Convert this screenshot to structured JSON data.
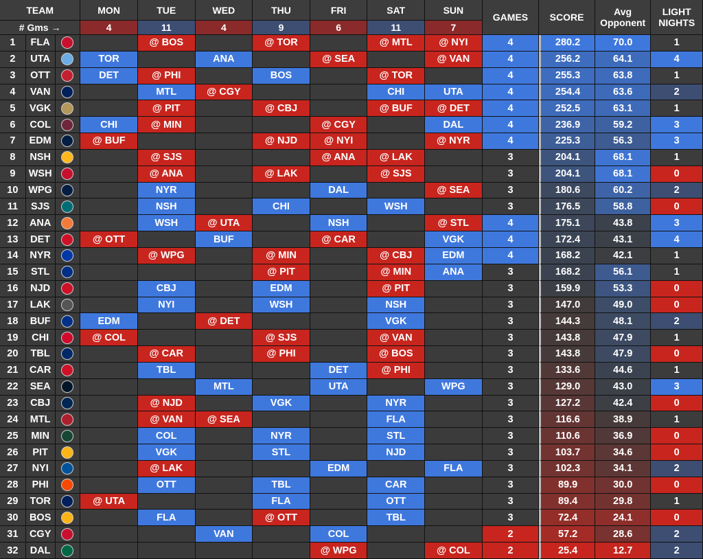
{
  "headers": {
    "team": "TEAM",
    "mon": "MON",
    "tue": "TUE",
    "wed": "WED",
    "thu": "THU",
    "fri": "FRI",
    "sat": "SAT",
    "sun": "SUN",
    "games": "GAMES",
    "score": "SCORE",
    "avg_line1": "Avg",
    "avg_line2": "Opponent",
    "light_line1": "LIGHT",
    "light_line2": "NIGHTS",
    "gms_label": "# Gms →"
  },
  "games_per_day": {
    "mon": "4",
    "tue": "11",
    "wed": "4",
    "thu": "9",
    "fri": "6",
    "sat": "11",
    "sun": "7"
  },
  "colors": {
    "home": "#3f78dd",
    "away": "#c8251e",
    "dark": "#3b3b3b"
  },
  "rows": [
    {
      "rank": "1",
      "team": "FLA",
      "logo": "#c8102e",
      "mon": "",
      "tue": "@ BOS",
      "wed": "",
      "thu": "@ TOR",
      "fri": "",
      "sat": "@ MTL",
      "sun": "@ NYI",
      "games": "4",
      "score": "280.2",
      "avg": "70.0",
      "light": "1"
    },
    {
      "rank": "2",
      "team": "UTA",
      "logo": "#6cace4",
      "mon": "TOR",
      "tue": "",
      "wed": "ANA",
      "thu": "",
      "fri": "@ SEA",
      "sat": "",
      "sun": "@ VAN",
      "games": "4",
      "score": "256.2",
      "avg": "64.1",
      "light": "4"
    },
    {
      "rank": "3",
      "team": "OTT",
      "logo": "#c52032",
      "mon": "DET",
      "tue": "@ PHI",
      "wed": "",
      "thu": "BOS",
      "fri": "",
      "sat": "@ TOR",
      "sun": "",
      "games": "4",
      "score": "255.3",
      "avg": "63.8",
      "light": "1"
    },
    {
      "rank": "4",
      "team": "VAN",
      "logo": "#00205b",
      "mon": "",
      "tue": "MTL",
      "wed": "@ CGY",
      "thu": "",
      "fri": "",
      "sat": "CHI",
      "sun": "UTA",
      "games": "4",
      "score": "254.4",
      "avg": "63.6",
      "light": "2"
    },
    {
      "rank": "5",
      "team": "VGK",
      "logo": "#b4975a",
      "mon": "",
      "tue": "@ PIT",
      "wed": "",
      "thu": "@ CBJ",
      "fri": "",
      "sat": "@ BUF",
      "sun": "@ DET",
      "games": "4",
      "score": "252.5",
      "avg": "63.1",
      "light": "1"
    },
    {
      "rank": "6",
      "team": "COL",
      "logo": "#6f263d",
      "mon": "CHI",
      "tue": "@ MIN",
      "wed": "",
      "thu": "",
      "fri": "@ CGY",
      "sat": "",
      "sun": "DAL",
      "games": "4",
      "score": "236.9",
      "avg": "59.2",
      "light": "3"
    },
    {
      "rank": "7",
      "team": "EDM",
      "logo": "#041e42",
      "mon": "@ BUF",
      "tue": "",
      "wed": "",
      "thu": "@ NJD",
      "fri": "@ NYI",
      "sat": "",
      "sun": "@ NYR",
      "games": "4",
      "score": "225.3",
      "avg": "56.3",
      "light": "3"
    },
    {
      "rank": "8",
      "team": "NSH",
      "logo": "#ffb81c",
      "mon": "",
      "tue": "@ SJS",
      "wed": "",
      "thu": "",
      "fri": "@ ANA",
      "sat": "@ LAK",
      "sun": "",
      "games": "3",
      "score": "204.1",
      "avg": "68.1",
      "light": "1"
    },
    {
      "rank": "9",
      "team": "WSH",
      "logo": "#c8102e",
      "mon": "",
      "tue": "@ ANA",
      "wed": "",
      "thu": "@ LAK",
      "fri": "",
      "sat": "@ SJS",
      "sun": "",
      "games": "3",
      "score": "204.1",
      "avg": "68.1",
      "light": "0"
    },
    {
      "rank": "10",
      "team": "WPG",
      "logo": "#041e42",
      "mon": "",
      "tue": "NYR",
      "wed": "",
      "thu": "",
      "fri": "DAL",
      "sat": "",
      "sun": "@ SEA",
      "games": "3",
      "score": "180.6",
      "avg": "60.2",
      "light": "2"
    },
    {
      "rank": "11",
      "team": "SJS",
      "logo": "#006d75",
      "mon": "",
      "tue": "NSH",
      "wed": "",
      "thu": "CHI",
      "fri": "",
      "sat": "WSH",
      "sun": "",
      "games": "3",
      "score": "176.5",
      "avg": "58.8",
      "light": "0"
    },
    {
      "rank": "12",
      "team": "ANA",
      "logo": "#f47a38",
      "mon": "",
      "tue": "WSH",
      "wed": "@ UTA",
      "thu": "",
      "fri": "NSH",
      "sat": "",
      "sun": "@ STL",
      "games": "4",
      "score": "175.1",
      "avg": "43.8",
      "light": "3"
    },
    {
      "rank": "13",
      "team": "DET",
      "logo": "#ce1126",
      "mon": "@ OTT",
      "tue": "",
      "wed": "BUF",
      "thu": "",
      "fri": "@ CAR",
      "sat": "",
      "sun": "VGK",
      "games": "4",
      "score": "172.4",
      "avg": "43.1",
      "light": "4"
    },
    {
      "rank": "14",
      "team": "NYR",
      "logo": "#0038a8",
      "mon": "",
      "tue": "@ WPG",
      "wed": "",
      "thu": "@ MIN",
      "fri": "",
      "sat": "@ CBJ",
      "sun": "EDM",
      "games": "4",
      "score": "168.2",
      "avg": "42.1",
      "light": "1"
    },
    {
      "rank": "15",
      "team": "STL",
      "logo": "#002f87",
      "mon": "",
      "tue": "",
      "wed": "",
      "thu": "@ PIT",
      "fri": "",
      "sat": "@ MIN",
      "sun": "ANA",
      "games": "3",
      "score": "168.2",
      "avg": "56.1",
      "light": "1"
    },
    {
      "rank": "16",
      "team": "NJD",
      "logo": "#ce1126",
      "mon": "",
      "tue": "CBJ",
      "wed": "",
      "thu": "EDM",
      "fri": "",
      "sat": "@ PIT",
      "sun": "",
      "games": "3",
      "score": "159.9",
      "avg": "53.3",
      "light": "0"
    },
    {
      "rank": "17",
      "team": "LAK",
      "logo": "#555555",
      "mon": "",
      "tue": "NYI",
      "wed": "",
      "thu": "WSH",
      "fri": "",
      "sat": "NSH",
      "sun": "",
      "games": "3",
      "score": "147.0",
      "avg": "49.0",
      "light": "0"
    },
    {
      "rank": "18",
      "team": "BUF",
      "logo": "#003087",
      "mon": "EDM",
      "tue": "",
      "wed": "@ DET",
      "thu": "",
      "fri": "",
      "sat": "VGK",
      "sun": "",
      "games": "3",
      "score": "144.3",
      "avg": "48.1",
      "light": "2"
    },
    {
      "rank": "19",
      "team": "CHI",
      "logo": "#cf0a2c",
      "mon": "@ COL",
      "tue": "",
      "wed": "",
      "thu": "@ SJS",
      "fri": "",
      "sat": "@ VAN",
      "sun": "",
      "games": "3",
      "score": "143.8",
      "avg": "47.9",
      "light": "1"
    },
    {
      "rank": "20",
      "team": "TBL",
      "logo": "#002868",
      "mon": "",
      "tue": "@ CAR",
      "wed": "",
      "thu": "@ PHI",
      "fri": "",
      "sat": "@ BOS",
      "sun": "",
      "games": "3",
      "score": "143.8",
      "avg": "47.9",
      "light": "0"
    },
    {
      "rank": "21",
      "team": "CAR",
      "logo": "#ce1126",
      "mon": "",
      "tue": "TBL",
      "wed": "",
      "thu": "",
      "fri": "DET",
      "sat": "@ PHI",
      "sun": "",
      "games": "3",
      "score": "133.6",
      "avg": "44.6",
      "light": "1"
    },
    {
      "rank": "22",
      "team": "SEA",
      "logo": "#001628",
      "mon": "",
      "tue": "",
      "wed": "MTL",
      "thu": "",
      "fri": "UTA",
      "sat": "",
      "sun": "WPG",
      "games": "3",
      "score": "129.0",
      "avg": "43.0",
      "light": "3"
    },
    {
      "rank": "23",
      "team": "CBJ",
      "logo": "#002654",
      "mon": "",
      "tue": "@ NJD",
      "wed": "",
      "thu": "VGK",
      "fri": "",
      "sat": "NYR",
      "sun": "",
      "games": "3",
      "score": "127.2",
      "avg": "42.4",
      "light": "0"
    },
    {
      "rank": "24",
      "team": "MTL",
      "logo": "#af1e2d",
      "mon": "",
      "tue": "@ VAN",
      "wed": "@ SEA",
      "thu": "",
      "fri": "",
      "sat": "FLA",
      "sun": "",
      "games": "3",
      "score": "116.6",
      "avg": "38.9",
      "light": "1"
    },
    {
      "rank": "25",
      "team": "MIN",
      "logo": "#154734",
      "mon": "",
      "tue": "COL",
      "wed": "",
      "thu": "NYR",
      "fri": "",
      "sat": "STL",
      "sun": "",
      "games": "3",
      "score": "110.6",
      "avg": "36.9",
      "light": "0"
    },
    {
      "rank": "26",
      "team": "PIT",
      "logo": "#fcb514",
      "mon": "",
      "tue": "VGK",
      "wed": "",
      "thu": "STL",
      "fri": "",
      "sat": "NJD",
      "sun": "",
      "games": "3",
      "score": "103.7",
      "avg": "34.6",
      "light": "0"
    },
    {
      "rank": "27",
      "team": "NYI",
      "logo": "#00539b",
      "mon": "",
      "tue": "@ LAK",
      "wed": "",
      "thu": "",
      "fri": "EDM",
      "sat": "",
      "sun": "FLA",
      "games": "3",
      "score": "102.3",
      "avg": "34.1",
      "light": "2"
    },
    {
      "rank": "28",
      "team": "PHI",
      "logo": "#f74902",
      "mon": "",
      "tue": "OTT",
      "wed": "",
      "thu": "TBL",
      "fri": "",
      "sat": "CAR",
      "sun": "",
      "games": "3",
      "score": "89.9",
      "avg": "30.0",
      "light": "0"
    },
    {
      "rank": "29",
      "team": "TOR",
      "logo": "#00205b",
      "mon": "@ UTA",
      "tue": "",
      "wed": "",
      "thu": "FLA",
      "fri": "",
      "sat": "OTT",
      "sun": "",
      "games": "3",
      "score": "89.4",
      "avg": "29.8",
      "light": "1"
    },
    {
      "rank": "30",
      "team": "BOS",
      "logo": "#fcb514",
      "mon": "",
      "tue": "FLA",
      "wed": "",
      "thu": "@ OTT",
      "fri": "",
      "sat": "TBL",
      "sun": "",
      "games": "3",
      "score": "72.4",
      "avg": "24.1",
      "light": "0"
    },
    {
      "rank": "31",
      "team": "CGY",
      "logo": "#c8102e",
      "mon": "",
      "tue": "",
      "wed": "VAN",
      "thu": "",
      "fri": "COL",
      "sat": "",
      "sun": "",
      "games": "2",
      "score": "57.2",
      "avg": "28.6",
      "light": "2"
    },
    {
      "rank": "32",
      "team": "DAL",
      "logo": "#006847",
      "mon": "",
      "tue": "",
      "wed": "",
      "thu": "",
      "fri": "@ WPG",
      "sat": "",
      "sun": "@ COL",
      "games": "2",
      "score": "25.4",
      "avg": "12.7",
      "light": "2"
    }
  ]
}
